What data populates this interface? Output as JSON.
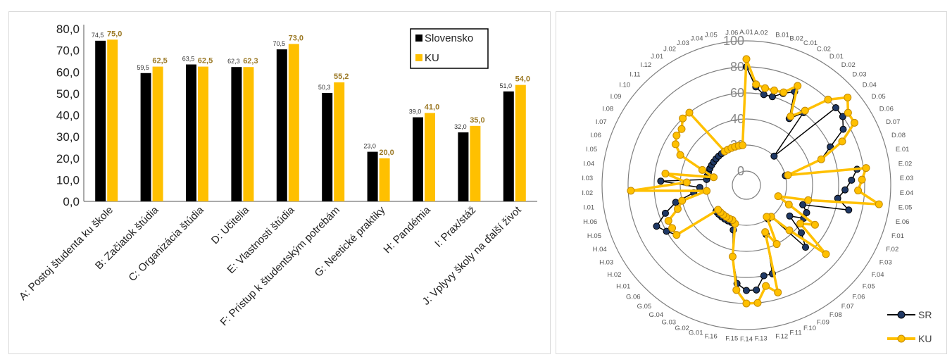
{
  "chart_data": [
    {
      "type": "bar",
      "categories": [
        "A: Postoj študenta ku škole",
        "B: Začiatok štúdia",
        "C: Organizácia štúdia",
        "D: Učitelia",
        "E: Vlastnosti štúdia",
        "F: Prístup k študentským potrebám",
        "G: Neetické praktiky",
        "H: Pandémia",
        "I: Prax/stáž",
        "J: Vplyvy školy na ďalší život"
      ],
      "series": [
        {
          "name": "Slovensko",
          "color": "#000000",
          "values": [
            74.5,
            59.5,
            63.5,
            62.3,
            70.5,
            50.3,
            23.0,
            39.0,
            32.0,
            51.0
          ],
          "labels": [
            "74,5",
            "59,5",
            "63,5",
            "62,3",
            "70,5",
            "50,3",
            "23,0",
            "39,0",
            "32,0",
            "51,0"
          ]
        },
        {
          "name": "KU",
          "color": "#ffc000",
          "label_color": "#9c7a27",
          "values": [
            75.0,
            62.5,
            62.5,
            62.3,
            73.0,
            55.2,
            20.0,
            41.0,
            35.0,
            54.0
          ],
          "labels": [
            "75,0",
            "62,5",
            "62,5",
            "62,3",
            "73,0",
            "55,2",
            "20,0",
            "41,0",
            "35,0",
            "54,0"
          ]
        }
      ],
      "ylim": [
        0,
        80
      ],
      "yticks": [
        "0,0",
        "10,0",
        "20,0",
        "30,0",
        "40,0",
        "50,0",
        "60,0",
        "70,0",
        "80,0"
      ],
      "grid": false,
      "legend": "top-right"
    },
    {
      "type": "radar",
      "categories": [
        "A.01",
        "A.02",
        "B.01",
        "B.02",
        "C.01",
        "C.02",
        "D.01",
        "D.02",
        "D.03",
        "D.04",
        "D.05",
        "D.06",
        "D.07",
        "D.08",
        "E.01",
        "E.02",
        "E.03",
        "E.04",
        "E.05",
        "E.06",
        "F.01",
        "F.02",
        "F.03",
        "F.04",
        "F.05",
        "F.06",
        "F.07",
        "F.08",
        "F.09",
        "F.10",
        "F.11",
        "F.12",
        "F.13",
        "F.14",
        "F.15",
        "F.16",
        "G.01",
        "G.02",
        "G.03",
        "G.04",
        "G.05",
        "G.06",
        "H.01",
        "H.02",
        "H.03",
        "H.04",
        "H.05",
        "H.06",
        "I.01",
        "I.02",
        "I.03",
        "I.04",
        "I.05",
        "I.06",
        "I.07",
        "I.08",
        "I.09",
        "I.10",
        "I.11",
        "I.12",
        "J.01",
        "J.02",
        "J.03",
        "J.04",
        "J.05",
        "J.06"
      ],
      "rticks": [
        "0",
        "20",
        "40",
        "60",
        "80",
        "100"
      ],
      "rlim": [
        0,
        100
      ],
      "legend": "bottom-right",
      "series": [
        {
          "name": "SR",
          "color": "#000000",
          "marker": "#1f3864",
          "values": [
            80,
            65,
            60,
            60,
            65,
            70,
            50,
            60,
            20,
            80,
            80,
            75,
            60,
            50,
            20,
            75,
            70,
            65,
            60,
            70,
            35,
            40,
            40,
            30,
            45,
            55,
            20,
            20,
            40,
            30,
            60,
            60,
            70,
            70,
            65,
            45,
            25,
            20,
            20,
            20,
            20,
            20,
            20,
            55,
            60,
            65,
            55,
            45,
            30,
            25,
            55,
            20,
            20,
            20,
            20,
            20,
            20,
            20,
            20,
            20,
            20,
            20,
            20,
            20,
            20,
            20
          ]
        },
        {
          "name": "KU",
          "color": "#ffc000",
          "marker": "#ffc000",
          "values": [
            86,
            67,
            65,
            65,
            66,
            75,
            52,
            62,
            80,
            92,
            85,
            85,
            70,
            50,
            22,
            82,
            78,
            75,
            92,
            38,
            15,
            25,
            50,
            40,
            70,
            37,
            20,
            18,
            40,
            28,
            75,
            68,
            80,
            80,
            70,
            45,
            20,
            18,
            18,
            18,
            18,
            18,
            18,
            55,
            55,
            55,
            45,
            40,
            20,
            78,
            35,
            52,
            15,
            25,
            45,
            52,
            55,
            55,
            60,
            60,
            20,
            20,
            20,
            20,
            20,
            20
          ]
        }
      ]
    }
  ]
}
